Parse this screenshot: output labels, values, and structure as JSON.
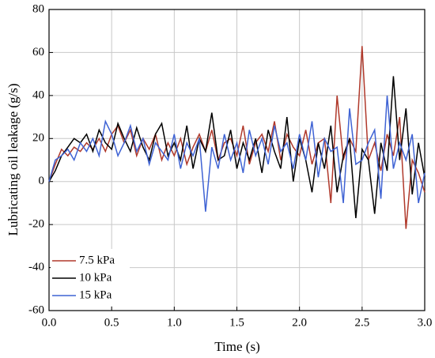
{
  "chart_data": {
    "type": "line",
    "xlabel": "Time  (s)",
    "ylabel": "Lubricating oil leakage (g/s)",
    "x": [
      0,
      0.05,
      0.1,
      0.15,
      0.2,
      0.25,
      0.3,
      0.35,
      0.4,
      0.45,
      0.5,
      0.55,
      0.6,
      0.65,
      0.7,
      0.75,
      0.8,
      0.85,
      0.9,
      0.95,
      1,
      1.05,
      1.1,
      1.15,
      1.2,
      1.25,
      1.3,
      1.35,
      1.4,
      1.45,
      1.5,
      1.55,
      1.6,
      1.65,
      1.7,
      1.75,
      1.8,
      1.85,
      1.9,
      1.95,
      2,
      2.05,
      2.1,
      2.15,
      2.2,
      2.25,
      2.3,
      2.35,
      2.4,
      2.45,
      2.5,
      2.55,
      2.6,
      2.65,
      2.7,
      2.75,
      2.8,
      2.85,
      2.9,
      2.95,
      3
    ],
    "series": [
      {
        "name": "7.5 kPa",
        "color": "#b0392b",
        "values": [
          0,
          8,
          15,
          12,
          16,
          14,
          18,
          15,
          20,
          14,
          22,
          26,
          18,
          24,
          12,
          20,
          15,
          22,
          10,
          18,
          12,
          20,
          8,
          16,
          22,
          14,
          24,
          10,
          18,
          20,
          12,
          26,
          8,
          18,
          22,
          14,
          28,
          10,
          22,
          16,
          12,
          24,
          8,
          18,
          20,
          -10,
          40,
          10,
          20,
          14,
          63,
          10,
          18,
          5,
          22,
          12,
          30,
          -22,
          10,
          4,
          -5
        ]
      },
      {
        "name": "10 kPa",
        "color": "#000000",
        "values": [
          0,
          5,
          12,
          16,
          20,
          18,
          22,
          14,
          24,
          18,
          15,
          27,
          20,
          14,
          25,
          16,
          10,
          22,
          27,
          12,
          18,
          10,
          26,
          6,
          20,
          14,
          32,
          10,
          12,
          24,
          6,
          18,
          10,
          20,
          4,
          24,
          14,
          6,
          30,
          0,
          20,
          10,
          -5,
          18,
          6,
          26,
          -5,
          12,
          20,
          -17,
          15,
          10,
          -15,
          18,
          5,
          49,
          10,
          34,
          -6,
          18,
          2
        ]
      },
      {
        "name": "15 kPa",
        "color": "#3f63d4",
        "values": [
          0,
          10,
          12,
          15,
          10,
          18,
          14,
          20,
          12,
          28,
          22,
          12,
          18,
          26,
          14,
          20,
          8,
          18,
          14,
          10,
          22,
          6,
          18,
          12,
          20,
          -14,
          16,
          6,
          22,
          10,
          18,
          4,
          24,
          12,
          20,
          8,
          26,
          14,
          18,
          6,
          22,
          10,
          28,
          2,
          20,
          14,
          16,
          -10,
          34,
          8,
          10,
          18,
          24,
          -8,
          40,
          6,
          18,
          10,
          22,
          -10,
          4
        ]
      }
    ],
    "xlim": [
      0,
      3
    ],
    "ylim": [
      -60,
      80
    ],
    "xticks": [
      {
        "value": 0,
        "label": "0.0"
      },
      {
        "value": 0.5,
        "label": "0.5"
      },
      {
        "value": 1,
        "label": "1.0"
      },
      {
        "value": 1.5,
        "label": "1.5"
      },
      {
        "value": 2,
        "label": "2.0"
      },
      {
        "value": 2.5,
        "label": "2.5"
      },
      {
        "value": 3,
        "label": "3.0"
      }
    ],
    "yticks": [
      -60,
      -40,
      -20,
      0,
      20,
      40,
      60,
      80
    ],
    "grid": true,
    "legend": "lower left"
  }
}
